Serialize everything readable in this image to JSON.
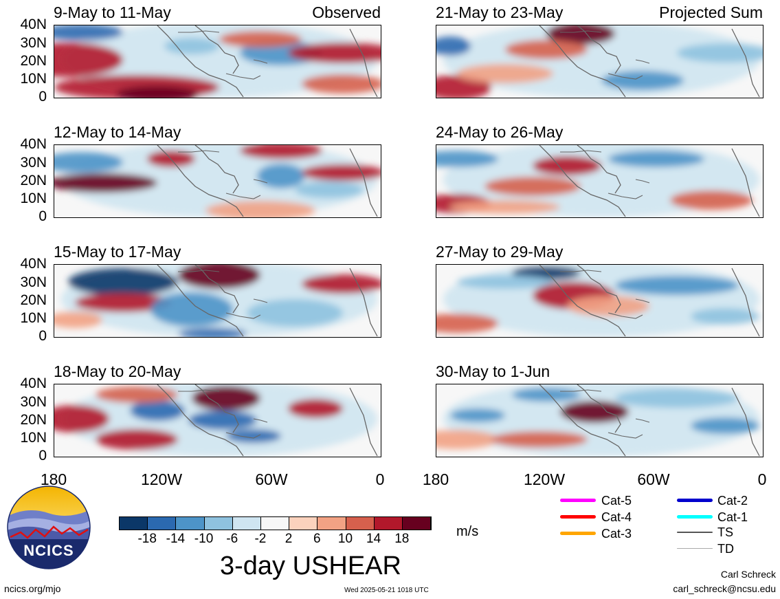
{
  "header": {
    "observed_label": "Observed",
    "projected_label": "Projected Sum"
  },
  "panels": [
    {
      "id": "p1",
      "title": "9-May to 11-May"
    },
    {
      "id": "p2",
      "title": "12-May to 14-May"
    },
    {
      "id": "p3",
      "title": "15-May to 17-May"
    },
    {
      "id": "p4",
      "title": "18-May to 20-May"
    },
    {
      "id": "p5",
      "title": "21-May to 23-May"
    },
    {
      "id": "p6",
      "title": "24-May to 26-May"
    },
    {
      "id": "p7",
      "title": "27-May to 29-May"
    },
    {
      "id": "p8",
      "title": "30-May to 1-Jun"
    }
  ],
  "axes": {
    "lat_labels": [
      "40N",
      "30N",
      "20N",
      "10N",
      "0"
    ],
    "lon_labels": [
      "180",
      "120W",
      "60W",
      "0"
    ]
  },
  "colorbar": {
    "tick_labels": [
      "-18",
      "-14",
      "-10",
      "-6",
      "-2",
      "2",
      "6",
      "10",
      "14",
      "18"
    ],
    "colors": [
      "#0b3768",
      "#2b69b0",
      "#4d94c8",
      "#8fc2df",
      "#cfe5f1",
      "#f7f7f7",
      "#fbd2bd",
      "#f2a284",
      "#d6604d",
      "#b2182b",
      "#67001f"
    ],
    "units": "m/s",
    "title": "3-day USHEAR"
  },
  "legend": {
    "items": [
      {
        "label": "Cat-5",
        "color": "#ff00ff"
      },
      {
        "label": "Cat-4",
        "color": "#ff0000"
      },
      {
        "label": "Cat-3",
        "color": "#ffa500"
      },
      {
        "label": "Cat-2",
        "color": "#0000cd"
      },
      {
        "label": "Cat-1",
        "color": "#00ffff"
      },
      {
        "label": "TS",
        "color": "#555555"
      },
      {
        "label": "TD",
        "color": "#aaaaaa"
      }
    ]
  },
  "logo": {
    "text": "NCICS"
  },
  "footer": {
    "left_url": "ncics.org/mjo",
    "timestamp": "Wed 2025-05-21 1018 UTC",
    "author": "Carl Schreck",
    "email": "carl_schreck@ncsu.edu"
  }
}
